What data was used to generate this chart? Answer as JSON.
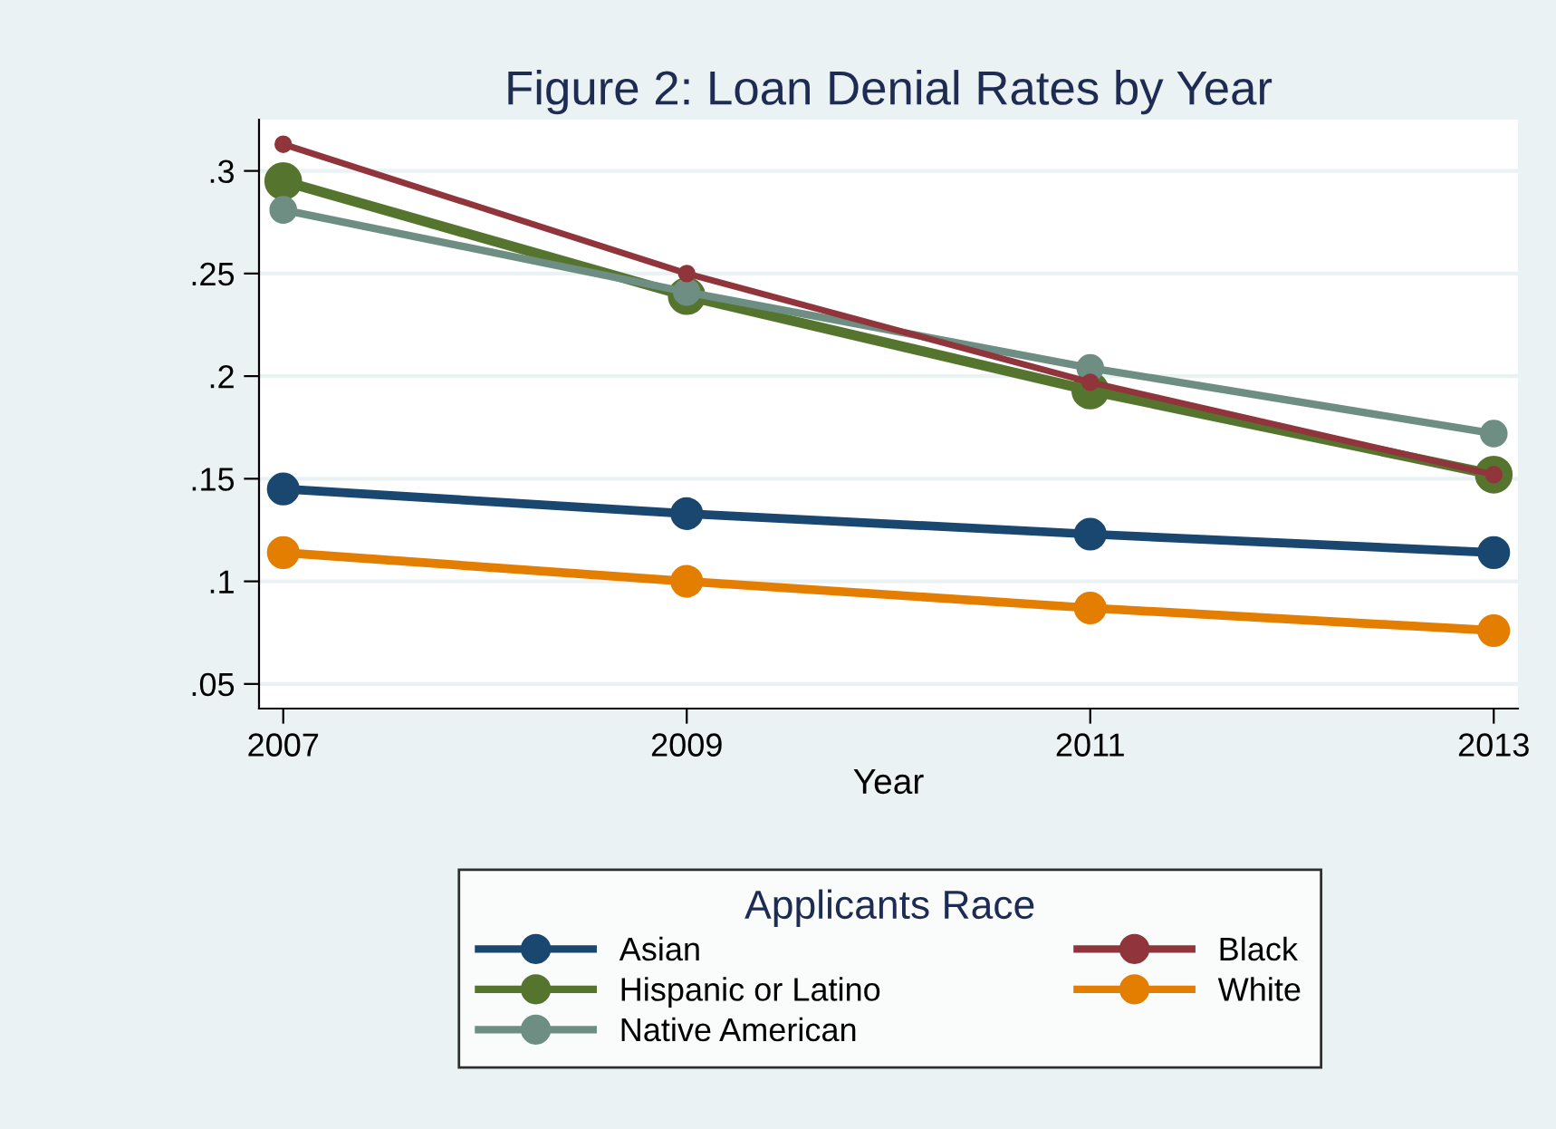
{
  "chart_data": {
    "type": "line",
    "title": "Figure 2: Loan Denial Rates by Year",
    "xlabel": "Year",
    "legend_title": "Applicants Race",
    "x": [
      2007,
      2009,
      2011,
      2013
    ],
    "series": [
      {
        "name": "Asian",
        "color": "#1a476f",
        "values": [
          0.145,
          0.133,
          0.123,
          0.114
        ]
      },
      {
        "name": "Black",
        "color": "#90353b",
        "values": [
          0.313,
          0.25,
          0.197,
          0.152
        ]
      },
      {
        "name": "Hispanic or Latino",
        "color": "#55752f",
        "values": [
          0.295,
          0.239,
          0.193,
          0.152
        ]
      },
      {
        "name": "White",
        "color": "#e37e00",
        "values": [
          0.114,
          0.1,
          0.087,
          0.076
        ]
      },
      {
        "name": "Native American",
        "color": "#6e8e84",
        "values": [
          0.281,
          0.241,
          0.204,
          0.172
        ]
      }
    ],
    "xlim": [
      2006.88,
      2013.12
    ],
    "xticks": [
      2007,
      2009,
      2011,
      2013
    ],
    "ylim": [
      0.038,
      0.325
    ],
    "yticks": [
      {
        "value": 0.05,
        "label": ".05"
      },
      {
        "value": 0.1,
        "label": ".1"
      },
      {
        "value": 0.15,
        "label": ".15"
      },
      {
        "value": 0.2,
        "label": ".2"
      },
      {
        "value": 0.25,
        "label": ".25"
      },
      {
        "value": 0.3,
        "label": ".3"
      }
    ],
    "grid": "y",
    "legend": "bottom",
    "marker": "circle",
    "line_style": "solid"
  }
}
